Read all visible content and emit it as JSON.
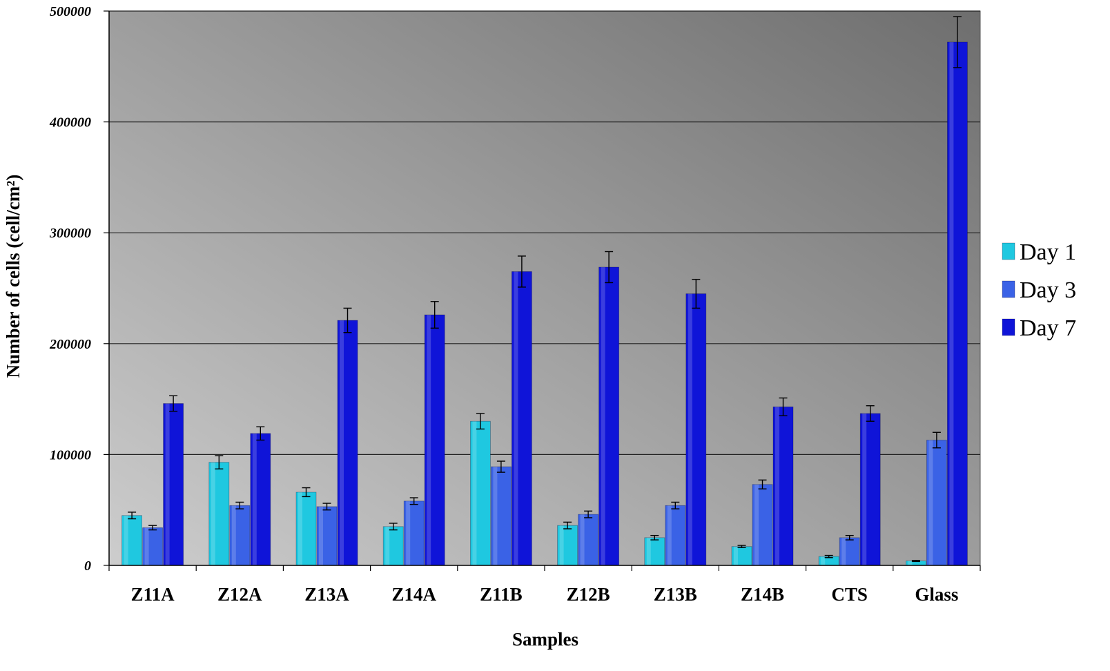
{
  "chart_data": {
    "type": "bar",
    "categories": [
      "Z11A",
      "Z12A",
      "Z13A",
      "Z14A",
      "Z11B",
      "Z12B",
      "Z13B",
      "Z14B",
      "CTS",
      "Glass"
    ],
    "series": [
      {
        "name": "Day 1",
        "color": "#1fc8e0",
        "values": [
          45000,
          93000,
          66000,
          35000,
          130000,
          36000,
          25000,
          17000,
          8000,
          4000
        ],
        "errors": [
          3000,
          6000,
          4000,
          3000,
          7000,
          3000,
          2000,
          1000,
          1000,
          500
        ]
      },
      {
        "name": "Day 3",
        "color": "#3a62e6",
        "values": [
          34000,
          54000,
          53000,
          58000,
          89000,
          46000,
          54000,
          73000,
          25000,
          113000
        ],
        "errors": [
          2000,
          3000,
          3000,
          3000,
          5000,
          3000,
          3000,
          4000,
          2000,
          7000
        ]
      },
      {
        "name": "Day 7",
        "color": "#0f14d8",
        "values": [
          146000,
          119000,
          221000,
          226000,
          265000,
          269000,
          245000,
          143000,
          137000,
          472000
        ],
        "errors": [
          7000,
          6000,
          11000,
          12000,
          14000,
          14000,
          13000,
          8000,
          7000,
          23000
        ]
      }
    ],
    "xlabel": "Samples",
    "ylabel": "Number of cells (cell/cm²)",
    "ylim": [
      0,
      500000
    ],
    "yticks": [
      "0",
      "100000",
      "200000",
      "300000",
      "400000",
      "500000"
    ],
    "grid": true,
    "legend": "right"
  }
}
